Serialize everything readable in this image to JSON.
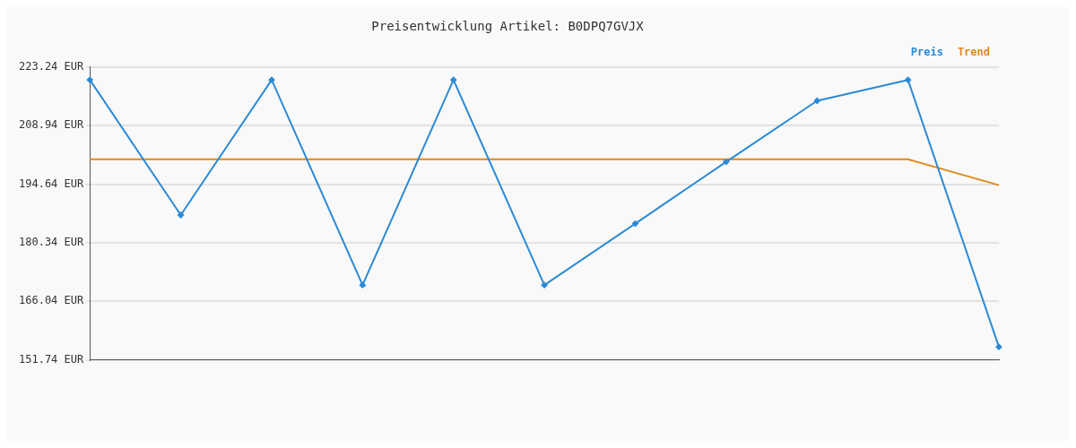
{
  "chart_data": {
    "type": "line",
    "title": "Preisentwicklung Artikel: B0DPQ7GVJX",
    "categories": [
      null,
      null,
      null,
      null,
      null,
      null,
      null,
      null,
      null,
      null,
      null
    ],
    "series": [
      {
        "name": "Preis",
        "color": "#2b8ad6",
        "marker": "diamond",
        "values": [
          220.1,
          187.1,
          220.1,
          170,
          220.1,
          170,
          185,
          200.1,
          215,
          220.1,
          154.9
        ]
      },
      {
        "name": "Trend",
        "color": "#e0891c",
        "marker": "none",
        "values": [
          200.7,
          200.7,
          200.7,
          200.7,
          200.7,
          200.7,
          200.7,
          200.7,
          200.7,
          200.7,
          194.4
        ]
      }
    ],
    "ylim": [
      151.74,
      223.24
    ],
    "yticks": [
      {
        "value": 151.74,
        "label": "151.74 EUR"
      },
      {
        "value": 166.04,
        "label": "166.04 EUR"
      },
      {
        "value": 180.34,
        "label": "180.34 EUR"
      },
      {
        "value": 194.64,
        "label": "194.64 EUR"
      },
      {
        "value": 208.94,
        "label": "208.94 EUR"
      },
      {
        "value": 223.24,
        "label": "223.24 EUR"
      }
    ],
    "grid": "y",
    "legend": "top right",
    "line_style": "solid"
  }
}
